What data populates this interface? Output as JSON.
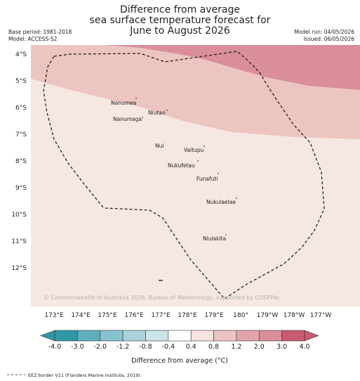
{
  "header": {
    "title_lines": [
      "Difference from average",
      "sea surface temperature forecast for",
      "June to August 2026"
    ],
    "base_period": "Base period: 1981-2018",
    "model": "Model: ACCESS-S2",
    "model_run": "Model run: 04/05/2026",
    "issued": "Issued: 06/05/2026"
  },
  "map": {
    "lat_labels": [
      "4°S",
      "5°S",
      "6°S",
      "7°S",
      "8°S",
      "9°S",
      "10°S",
      "11°S",
      "12°S"
    ],
    "lon_labels": [
      "173°E",
      "174°E",
      "175°E",
      "176°E",
      "177°E",
      "178°E",
      "179°E",
      "180°",
      "179°W",
      "178°W",
      "177°W"
    ],
    "islands": [
      "Nanumea",
      "Niutao",
      "Nanumaga",
      "Nui",
      "Vaitupu",
      "Nukufetau",
      "Funafuti",
      "Nukulaelae",
      "Niulakita"
    ],
    "copyright": "© Commonwealth of Australia 2026, Bureau of Meteorology, supported by COSPPac",
    "band_colors": {
      "light": "#f7e7e3",
      "medium": "#ecc5c0",
      "strong": "#d98e99"
    }
  },
  "colorbar": {
    "tick_labels": [
      "-4.0",
      "-3.0",
      "-2.0",
      "-1.2",
      "-0.8",
      "-0.4",
      "0.4",
      "0.8",
      "1.2",
      "2.0",
      "3.0",
      "4.0"
    ],
    "colors": [
      "#2e97a8",
      "#5eafbe",
      "#86c3cf",
      "#a9d3db",
      "#cce3e7",
      "#ffffff",
      "#f5e4e0",
      "#ecc5c0",
      "#e2a5aa",
      "#d98e99",
      "#c95a6f"
    ],
    "label": "Difference from average (°C)"
  },
  "footer": {
    "eez_legend": "EEZ border V11 (Flanders Marine Institute, 2019)."
  }
}
